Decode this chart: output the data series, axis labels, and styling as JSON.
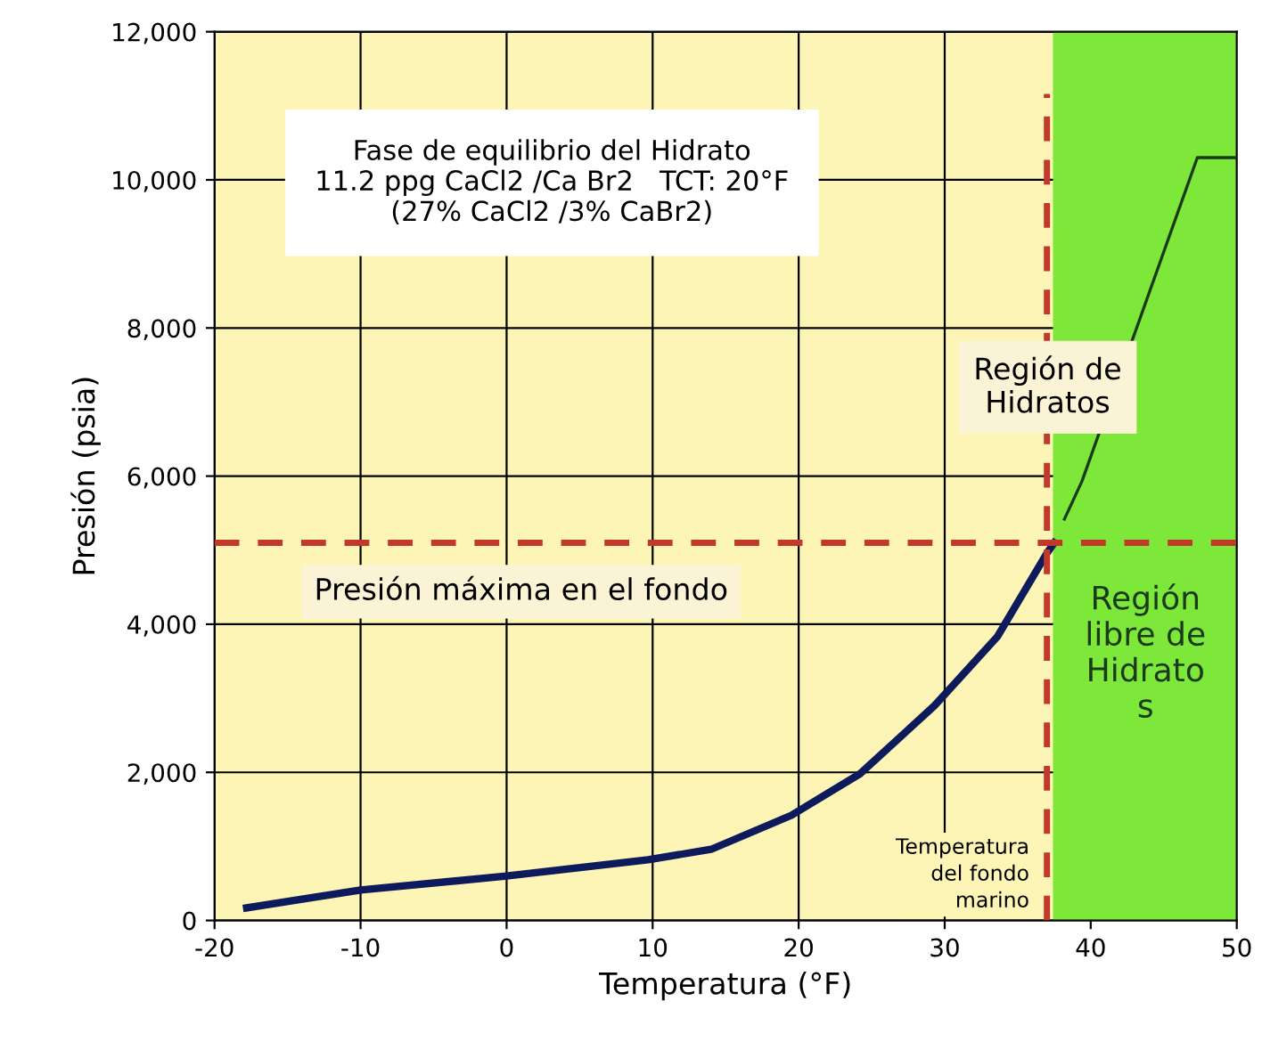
{
  "chart_data": {
    "type": "line",
    "xlabel": "Temperatura (°F)",
    "ylabel": "Presión (psia)",
    "xlim": [
      -20,
      50
    ],
    "xticks": [
      -20,
      -10,
      0,
      10,
      20,
      30,
      40,
      50
    ],
    "ylim": [
      0,
      12000
    ],
    "yticks": [
      0,
      {
        "value": 2000,
        "label": "2,000"
      },
      {
        "value": 4000,
        "label": "4,000"
      },
      {
        "value": 6000,
        "label": "6,000"
      },
      {
        "value": 8000,
        "label": "8,000"
      },
      {
        "value": 10000,
        "label": "10,000"
      },
      {
        "value": 12000,
        "label": "12,000"
      }
    ],
    "grid": true,
    "legend": false,
    "marker": "none",
    "line_style": "solid",
    "series": [
      {
        "color": "#0d1a5c",
        "x": [
          -17.8,
          -10,
          0,
          9.7,
          14,
          19.5,
          24.2,
          29.3,
          33.6,
          37,
          37.5
        ],
        "values": [
          170,
          410,
          600,
          820,
          960,
          1420,
          1980,
          2900,
          3830,
          4960,
          5100
        ]
      },
      {
        "color": "#1a3a1a",
        "x": [
          38.2,
          39.4,
          47.3,
          50
        ],
        "values": [
          5420,
          5930,
          10300,
          10300
        ]
      }
    ],
    "bands": [
      {
        "axis": "x",
        "from": 37.5,
        "to": 50,
        "label": "Región\nlibre de\nHidrato\ns",
        "color": "#7ee83a"
      }
    ],
    "ref_lines": [
      {
        "axis": "y",
        "value": 5100,
        "label": "Presión máxima en el fondo",
        "color": "#c0392b",
        "line_style": "dashed"
      },
      {
        "axis": "x",
        "value": 37,
        "label": "Temperatura\ndel fondo\nmarino",
        "color": "#c0392b",
        "line_style": "dashed"
      }
    ],
    "annotations": [
      "Fase de equilibrio del Hidrato\n11.2 ppg CaCl2 /Ca Br2   TCT: 20°F\n(27% CaCl2 /3% CaBr2)",
      "Región de\nHidratos"
    ]
  }
}
